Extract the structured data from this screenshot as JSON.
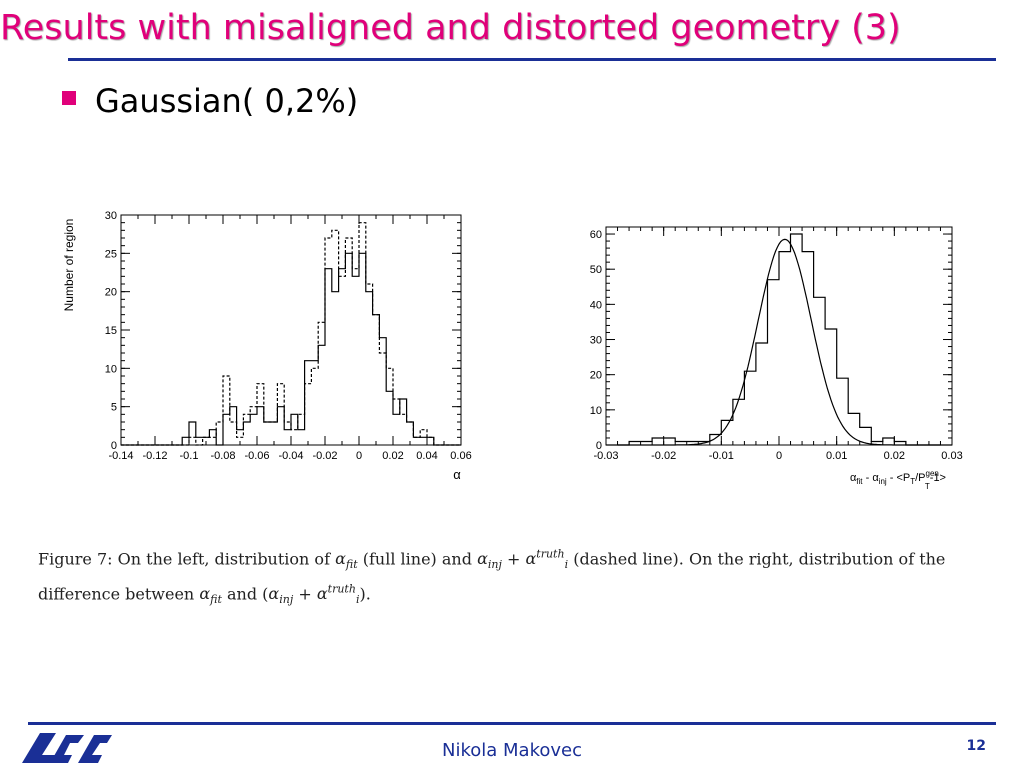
{
  "slide": {
    "title": "Results with misaligned and distorted geometry (3)",
    "bullet": "Gaussian( 0,2%)",
    "author": "Nikola Makovec",
    "page": "12",
    "accent_color": "#e0007a",
    "rule_color": "#1a2f96",
    "logo_icon": "lal-logo-icon"
  },
  "caption": {
    "figure_label": "Figure 7:",
    "text_1": "On the left, distribution of",
    "alpha_fit": "α",
    "fit_sub": "fit",
    "text_2": "(full line) and",
    "alpha_inj": "α",
    "inj_sub": "inj",
    "plus": "+",
    "alpha_i": "α",
    "truth_sup": "truth",
    "i_sub": "i",
    "text_3": "(dashed line). On the right, distribution of the difference between",
    "and": "and",
    "paren_open": "(",
    "paren_close": ")."
  },
  "chart_data": [
    {
      "type": "histogram",
      "title": "",
      "xlabel": "α",
      "ylabel": "Number of region",
      "xlim": [
        -0.14,
        0.06
      ],
      "ylim": [
        0,
        30
      ],
      "xticks": [
        -0.14,
        -0.12,
        -0.1,
        -0.08,
        -0.06,
        -0.04,
        -0.02,
        0,
        0.02,
        0.04,
        0.06
      ],
      "xtick_labels": [
        "-0.14",
        "-0.12",
        "-0.1",
        "-0.08",
        "-0.06",
        "-0.04",
        "-0.02",
        "0",
        "0.02",
        "0.04",
        "0.06"
      ],
      "yticks": [
        0,
        5,
        10,
        15,
        20,
        25,
        30
      ],
      "ytick_labels": [
        "0",
        "5",
        "10",
        "15",
        "20",
        "25",
        "30"
      ],
      "bin_start": -0.14,
      "bin_width": 0.004,
      "series": [
        {
          "name": "α_fit",
          "style": "solid",
          "values": [
            0,
            0,
            0,
            0,
            0,
            0,
            0,
            0,
            0,
            1,
            3,
            1,
            1,
            2,
            0,
            4,
            5,
            2,
            3,
            4,
            5,
            3,
            3,
            5,
            2,
            4,
            2,
            11,
            11,
            13,
            23,
            20,
            23,
            25,
            22,
            25,
            20,
            17,
            14,
            7,
            4,
            6,
            3,
            1,
            1,
            1,
            0,
            0,
            0,
            0
          ]
        },
        {
          "name": "α_inj + α_i^truth",
          "style": "dashed",
          "values": [
            0,
            0,
            0,
            0,
            0,
            0,
            0,
            0,
            0,
            0,
            1,
            0,
            1,
            1,
            3,
            9,
            3,
            1,
            4,
            5,
            8,
            3,
            3,
            8,
            3,
            2,
            4,
            8,
            10,
            16,
            27,
            28,
            22,
            27,
            23,
            29,
            21,
            17,
            12,
            10,
            6,
            4,
            3,
            1,
            2,
            1,
            0,
            0,
            0,
            0
          ]
        }
      ]
    },
    {
      "type": "histogram",
      "title": "",
      "xlabel": "α_fit - α_inj - <P_T/P_T^gen -1>",
      "xlabel_alpha": "α",
      "xlabel_fit": "fit",
      "xlabel_minus": " - ",
      "xlabel_inj": "inj",
      "xlabel_rest": " - <P",
      "xlabel_T1": "T",
      "xlabel_slash": "/P",
      "xlabel_gen": "gen",
      "xlabel_T2": "T",
      "xlabel_end": "-1>",
      "ylabel": "",
      "xlim": [
        -0.03,
        0.03
      ],
      "ylim": [
        0,
        62
      ],
      "xticks": [
        -0.03,
        -0.02,
        -0.01,
        0,
        0.01,
        0.02,
        0.03
      ],
      "xtick_labels": [
        "-0.03",
        "-0.02",
        "-0.01",
        "0",
        "0.01",
        "0.02",
        "0.03"
      ],
      "yticks": [
        0,
        10,
        20,
        30,
        40,
        50,
        60
      ],
      "ytick_labels": [
        "0",
        "10",
        "20",
        "30",
        "40",
        "50",
        "60"
      ],
      "bin_start": -0.028,
      "bin_width": 0.002,
      "series": [
        {
          "name": "α_fit - α_inj",
          "style": "solid",
          "values": [
            0,
            1,
            1,
            2,
            2,
            1,
            1,
            1,
            3,
            7,
            13,
            21,
            29,
            47,
            55,
            60,
            55,
            42,
            33,
            19,
            9,
            5,
            1,
            2,
            1,
            0,
            0,
            0
          ]
        }
      ],
      "fit": {
        "name": "Gaussian fit",
        "mean": 0.001,
        "sigma": 0.0046,
        "amplitude": 58.5
      }
    }
  ]
}
